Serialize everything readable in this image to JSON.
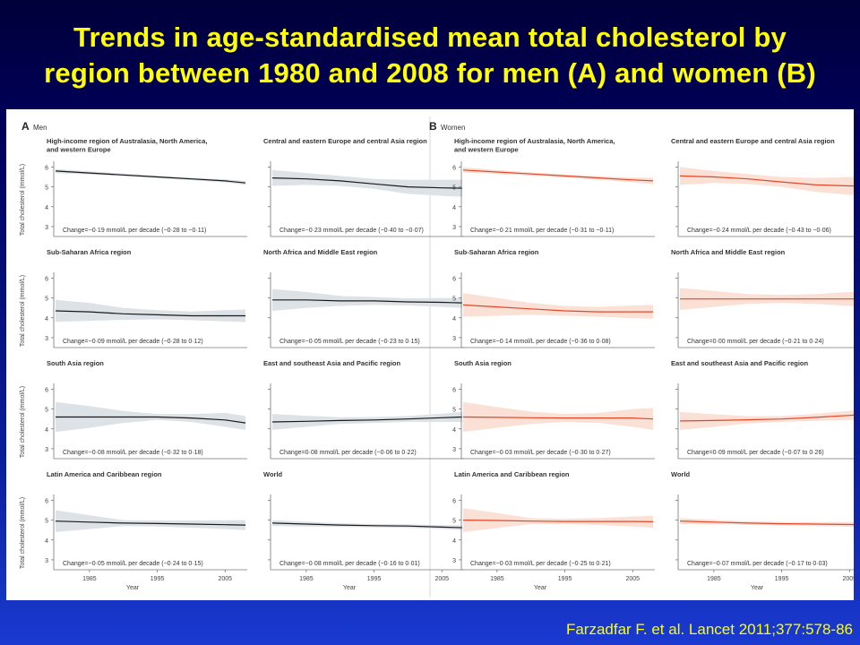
{
  "slide": {
    "title": "Trends in age-standardised mean total cholesterol by\nregion between 1980 and 2008 for men (A) and women (B)",
    "citation": "Farzadfar F. et al. Lancet 2011;377:578-86"
  },
  "colors": {
    "title_text": "#ffff00",
    "men_line": "#1a1a1a",
    "men_band": "#dde2e6",
    "women_line": "#e0482a",
    "women_band": "#fbe0d6"
  },
  "chart_data": [
    {
      "type": "line",
      "panel_letter": "A",
      "group": "Men",
      "ylabel": "Total cholesterol (mmol/L)",
      "xlabel": "Year",
      "x_ticks": [
        1985,
        1995,
        2005
      ],
      "xlim": [
        1980,
        2008
      ],
      "ylim": [
        2.5,
        6.2
      ],
      "y_ticks": [
        3,
        4,
        5,
        6
      ],
      "subplots": [
        {
          "title": "High-income region of Australasia, North America, and western Europe",
          "change": "Change=−0·19 mmol/L per decade (−0·28 to −0·11)",
          "x": [
            1980,
            1985,
            1990,
            1995,
            2000,
            2005,
            2008
          ],
          "y": [
            5.8,
            5.7,
            5.6,
            5.5,
            5.4,
            5.3,
            5.2
          ],
          "lower": [
            5.7,
            5.62,
            5.53,
            5.44,
            5.34,
            5.22,
            5.1
          ],
          "upper": [
            5.9,
            5.78,
            5.67,
            5.56,
            5.46,
            5.38,
            5.3
          ]
        },
        {
          "title": "Central and eastern Europe and central Asia region",
          "change": "Change=−0·23 mmol/L per decade (−0·40 to −0·07)",
          "x": [
            1980,
            1985,
            1990,
            1995,
            2000,
            2005,
            2008
          ],
          "y": [
            5.45,
            5.4,
            5.3,
            5.15,
            5.0,
            4.95,
            4.93
          ],
          "lower": [
            5.05,
            5.1,
            5.05,
            4.9,
            4.65,
            4.55,
            4.5
          ],
          "upper": [
            5.85,
            5.7,
            5.55,
            5.4,
            5.35,
            5.35,
            5.36
          ]
        },
        {
          "title": "Sub-Saharan Africa region",
          "change": "Change=−0·09 mmol/L per decade (−0·28 to 0·12)",
          "x": [
            1980,
            1985,
            1990,
            1995,
            2000,
            2005,
            2008
          ],
          "y": [
            4.35,
            4.3,
            4.2,
            4.15,
            4.1,
            4.1,
            4.1
          ],
          "lower": [
            3.8,
            3.85,
            3.9,
            3.92,
            3.88,
            3.82,
            3.78
          ],
          "upper": [
            4.9,
            4.75,
            4.5,
            4.38,
            4.32,
            4.38,
            4.42
          ]
        },
        {
          "title": "North Africa and Middle East region",
          "change": "Change=−0·05 mmol/L per decade (−0·23 to 0·15)",
          "x": [
            1980,
            1985,
            1990,
            1995,
            2000,
            2005,
            2008
          ],
          "y": [
            4.9,
            4.9,
            4.85,
            4.85,
            4.8,
            4.78,
            4.75
          ],
          "lower": [
            4.35,
            4.5,
            4.6,
            4.65,
            4.62,
            4.55,
            4.5
          ],
          "upper": [
            5.45,
            5.3,
            5.1,
            5.05,
            4.98,
            5.0,
            5.0
          ]
        },
        {
          "title": "South Asia region",
          "change": "Change=−0·08 mmol/L per decade (−0·32 to 0·18)",
          "x": [
            1980,
            1985,
            1990,
            1995,
            2000,
            2005,
            2008
          ],
          "y": [
            4.6,
            4.6,
            4.6,
            4.6,
            4.55,
            4.45,
            4.3
          ],
          "lower": [
            3.85,
            4.05,
            4.3,
            4.45,
            4.35,
            4.1,
            3.95
          ],
          "upper": [
            5.35,
            5.15,
            4.9,
            4.75,
            4.75,
            4.8,
            4.65
          ]
        },
        {
          "title": "East and southeast Asia and Pacific region",
          "change": "Change=0·08 mmol/L per decade (−0·06 to 0·22)",
          "x": [
            1980,
            1985,
            1990,
            1995,
            2000,
            2005,
            2008
          ],
          "y": [
            4.35,
            4.38,
            4.42,
            4.45,
            4.5,
            4.56,
            4.6
          ],
          "lower": [
            3.95,
            4.1,
            4.25,
            4.3,
            4.35,
            4.35,
            4.35
          ],
          "upper": [
            4.75,
            4.66,
            4.59,
            4.6,
            4.65,
            4.77,
            4.85
          ]
        },
        {
          "title": "Latin America and Caribbean region",
          "change": "Change=−0·05 mmol/L per decade (−0·24 to 0·15)",
          "x": [
            1980,
            1985,
            1990,
            1995,
            2000,
            2005,
            2008
          ],
          "y": [
            4.95,
            4.9,
            4.85,
            4.83,
            4.8,
            4.77,
            4.75
          ],
          "lower": [
            4.4,
            4.55,
            4.7,
            4.68,
            4.62,
            4.55,
            4.5
          ],
          "upper": [
            5.5,
            5.25,
            5.0,
            4.98,
            4.98,
            4.99,
            5.0
          ]
        },
        {
          "title": "World",
          "change": "Change=−0·08 mmol/L per decade (−0·16 to 0·01)",
          "x": [
            1980,
            1985,
            1990,
            1995,
            2000,
            2005,
            2008
          ],
          "y": [
            4.85,
            4.8,
            4.75,
            4.72,
            4.7,
            4.65,
            4.62
          ],
          "lower": [
            4.7,
            4.68,
            4.66,
            4.64,
            4.61,
            4.55,
            4.5
          ],
          "upper": [
            5.0,
            4.92,
            4.84,
            4.8,
            4.79,
            4.75,
            4.74
          ]
        }
      ]
    },
    {
      "type": "line",
      "panel_letter": "B",
      "group": "Women",
      "ylabel": "Total cholesterol (mmol/L)",
      "xlabel": "Year",
      "x_ticks": [
        1985,
        1995,
        2005
      ],
      "xlim": [
        1980,
        2008
      ],
      "ylim": [
        2.5,
        6.2
      ],
      "y_ticks": [
        3,
        4,
        5,
        6
      ],
      "subplots": [
        {
          "title": "High-income region of Australasia, North America, and western Europe",
          "change": "Change=−0·21 mmol/L per decade (−0·31 to −0·11)",
          "x": [
            1980,
            1985,
            1990,
            1995,
            2000,
            2005,
            2008
          ],
          "y": [
            5.85,
            5.75,
            5.65,
            5.55,
            5.45,
            5.35,
            5.3
          ],
          "lower": [
            5.72,
            5.65,
            5.57,
            5.47,
            5.36,
            5.23,
            5.14
          ],
          "upper": [
            5.98,
            5.85,
            5.73,
            5.63,
            5.54,
            5.47,
            5.46
          ]
        },
        {
          "title": "Central and eastern Europe and central Asia region",
          "change": "Change=−0·24 mmol/L per decade (−0·43 to −0·06)",
          "x": [
            1980,
            1985,
            1990,
            1995,
            2000,
            2005,
            2008
          ],
          "y": [
            5.55,
            5.5,
            5.4,
            5.25,
            5.1,
            5.05,
            5.05
          ],
          "lower": [
            5.1,
            5.2,
            5.15,
            5.0,
            4.75,
            4.6,
            4.55
          ],
          "upper": [
            6.0,
            5.8,
            5.65,
            5.5,
            5.45,
            5.5,
            5.55
          ]
        },
        {
          "title": "Sub-Saharan Africa region",
          "change": "Change=−0·14 mmol/L per decade (−0·36 to 0·08)",
          "x": [
            1980,
            1985,
            1990,
            1995,
            2000,
            2005,
            2008
          ],
          "y": [
            4.65,
            4.55,
            4.45,
            4.35,
            4.3,
            4.3,
            4.3
          ],
          "lower": [
            4.05,
            4.1,
            4.15,
            4.1,
            4.05,
            3.98,
            3.95
          ],
          "upper": [
            5.25,
            5.0,
            4.75,
            4.6,
            4.55,
            4.62,
            4.65
          ]
        },
        {
          "title": "North Africa and Middle East region",
          "change": "Change=0·00 mmol/L per decade (−0·21 to 0·24)",
          "x": [
            1980,
            1985,
            1990,
            1995,
            2000,
            2005,
            2008
          ],
          "y": [
            4.95,
            4.95,
            4.95,
            4.95,
            4.95,
            4.95,
            4.95
          ],
          "lower": [
            4.4,
            4.55,
            4.7,
            4.75,
            4.7,
            4.6,
            4.5
          ],
          "upper": [
            5.5,
            5.35,
            5.2,
            5.15,
            5.2,
            5.3,
            5.4
          ]
        },
        {
          "title": "South Asia region",
          "change": "Change=−0·03 mmol/L per decade (−0·30 to 0·27)",
          "x": [
            1980,
            1985,
            1990,
            1995,
            2000,
            2005,
            2008
          ],
          "y": [
            4.6,
            4.58,
            4.56,
            4.55,
            4.55,
            4.55,
            4.5
          ],
          "lower": [
            3.85,
            4.05,
            4.25,
            4.35,
            4.3,
            4.1,
            3.95
          ],
          "upper": [
            5.35,
            5.1,
            4.87,
            4.75,
            4.8,
            5.0,
            5.05
          ]
        },
        {
          "title": "East and southeast Asia and Pacific region",
          "change": "Change=0·09 mmol/L per decade (−0·07 to 0·26)",
          "x": [
            1980,
            1985,
            1990,
            1995,
            2000,
            2005,
            2008
          ],
          "y": [
            4.4,
            4.42,
            4.46,
            4.5,
            4.58,
            4.68,
            4.75
          ],
          "lower": [
            3.95,
            4.1,
            4.28,
            4.35,
            4.4,
            4.45,
            4.45
          ],
          "upper": [
            4.85,
            4.74,
            4.64,
            4.65,
            4.76,
            4.91,
            5.05
          ]
        },
        {
          "title": "Latin America and Caribbean region",
          "change": "Change=−0·03 mmol/L per decade (−0·25 to 0·21)",
          "x": [
            1980,
            1985,
            1990,
            1995,
            2000,
            2005,
            2008
          ],
          "y": [
            5.0,
            4.98,
            4.95,
            4.93,
            4.93,
            4.93,
            4.92
          ],
          "lower": [
            4.4,
            4.6,
            4.8,
            4.8,
            4.75,
            4.68,
            4.62
          ],
          "upper": [
            5.6,
            5.36,
            5.1,
            5.06,
            5.11,
            5.18,
            5.22
          ]
        },
        {
          "title": "World",
          "change": "Change=−0·07 mmol/L per decade (−0·17 to 0·03)",
          "x": [
            1980,
            1985,
            1990,
            1995,
            2000,
            2005,
            2008
          ],
          "y": [
            4.95,
            4.9,
            4.85,
            4.82,
            4.8,
            4.78,
            4.78
          ],
          "lower": [
            4.8,
            4.78,
            4.76,
            4.73,
            4.7,
            4.66,
            4.62
          ],
          "upper": [
            5.1,
            5.02,
            4.94,
            4.91,
            4.9,
            4.9,
            4.94
          ]
        }
      ]
    }
  ]
}
